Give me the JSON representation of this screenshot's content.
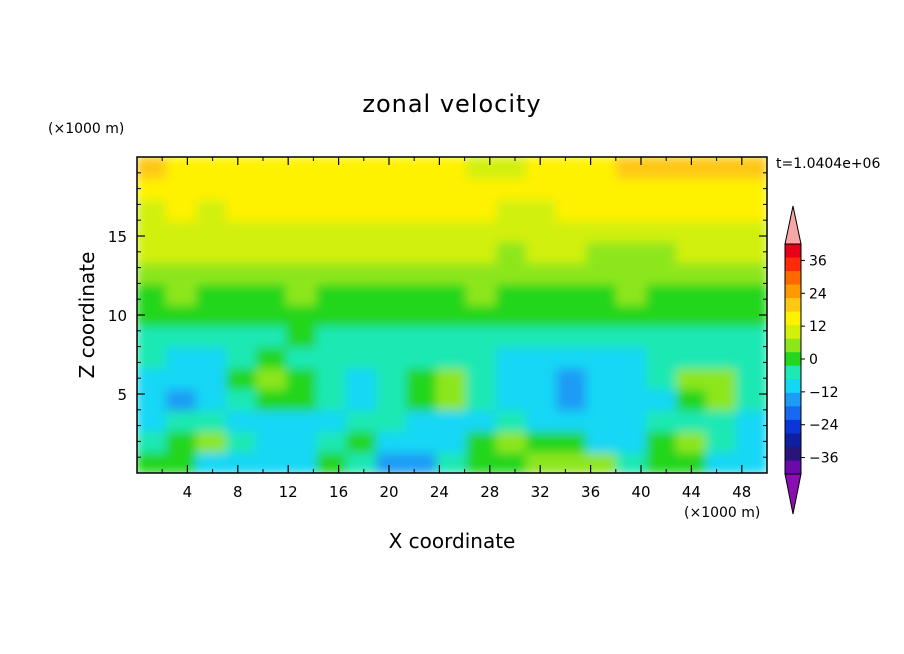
{
  "chart_data": {
    "type": "heatmap",
    "title": "zonal velocity",
    "xlabel": "X coordinate",
    "ylabel": "Z coordinate",
    "x_unit": "(×1000 m)",
    "y_unit": "(×1000 m)",
    "time_label": "t=1.0404e+06",
    "xlim": [
      0,
      50
    ],
    "ylim": [
      0,
      20
    ],
    "x_ticks": [
      "4",
      "8",
      "12",
      "16",
      "20",
      "24",
      "28",
      "32",
      "36",
      "40",
      "44",
      "48"
    ],
    "y_ticks": [
      "5",
      "10",
      "15"
    ],
    "x_tick_values": [
      4,
      8,
      12,
      16,
      20,
      24,
      28,
      32,
      36,
      40,
      44,
      48
    ],
    "y_tick_values": [
      5,
      10,
      15
    ],
    "colorbar": {
      "labels": [
        "36",
        "24",
        "12",
        "0",
        "−12",
        "−24",
        "−36"
      ],
      "label_values": [
        36,
        24,
        12,
        0,
        -12,
        -24,
        -36
      ],
      "levels": [
        -42,
        -36,
        -30,
        -24,
        -18,
        -12,
        -6,
        0,
        6,
        12,
        18,
        24,
        30,
        36,
        42
      ],
      "colors": [
        "#6a0aa8",
        "#27157a",
        "#0f1fa0",
        "#0a36d8",
        "#1669f0",
        "#1c9cf5",
        "#12d7f5",
        "#1ee8b4",
        "#23d61e",
        "#8de61a",
        "#d2f00a",
        "#fff200",
        "#ffc814",
        "#ff9a00",
        "#ff6a00",
        "#ff2a0a",
        "#e8001a"
      ],
      "extend_low_color": "#8b0eb0",
      "extend_high_color": "#f7a5a5"
    },
    "z_rows_bottom_to_top": [
      [
        2,
        3,
        -10,
        -12,
        -12,
        -8,
        0,
        -5,
        -16,
        -18,
        -4,
        2,
        4,
        8,
        8,
        6,
        -6,
        2,
        4,
        -10,
        -8
      ],
      [
        -6,
        4,
        6,
        -4,
        -12,
        -10,
        -2,
        2,
        -8,
        -12,
        -8,
        2,
        6,
        4,
        0,
        -8,
        -10,
        2,
        6,
        -4,
        -10
      ],
      [
        -8,
        -4,
        -2,
        -8,
        -10,
        -8,
        -10,
        -4,
        -2,
        -8,
        -10,
        -8,
        -4,
        -10,
        -12,
        -10,
        -12,
        -6,
        -2,
        -6,
        -8
      ],
      [
        -10,
        -14,
        -8,
        -2,
        4,
        2,
        -6,
        -10,
        -6,
        4,
        6,
        -4,
        -10,
        -12,
        -14,
        -12,
        -10,
        -8,
        4,
        6,
        -6
      ],
      [
        -8,
        -12,
        -10,
        0,
        6,
        4,
        -4,
        -8,
        -4,
        4,
        8,
        -2,
        -10,
        -12,
        -14,
        -12,
        -10,
        -6,
        6,
        8,
        -4
      ],
      [
        -6,
        -8,
        -10,
        -4,
        0,
        -2,
        -6,
        -6,
        -4,
        -2,
        -4,
        -6,
        -8,
        -8,
        -10,
        -8,
        -8,
        -6,
        -4,
        -6,
        -6
      ],
      [
        -2,
        -2,
        -4,
        -2,
        -2,
        0,
        -2,
        -4,
        -4,
        -2,
        -2,
        -4,
        -4,
        -6,
        -6,
        -4,
        -4,
        -2,
        -2,
        -2,
        -4
      ],
      [
        2,
        2,
        1,
        2,
        2,
        1,
        2,
        0,
        1,
        2,
        1,
        2,
        1,
        2,
        0,
        2,
        2,
        1,
        2,
        2,
        1
      ],
      [
        4,
        6,
        3,
        5,
        4,
        6,
        3,
        4,
        5,
        3,
        4,
        6,
        4,
        3,
        4,
        5,
        6,
        4,
        3,
        5,
        4
      ],
      [
        8,
        7,
        9,
        8,
        7,
        8,
        9,
        8,
        10,
        9,
        8,
        7,
        9,
        10,
        8,
        6,
        7,
        8,
        9,
        8,
        9
      ],
      [
        12,
        12,
        13,
        12,
        12,
        13,
        14,
        13,
        12,
        12,
        13,
        12,
        11,
        12,
        12,
        10,
        9,
        11,
        12,
        12,
        13
      ],
      [
        14,
        15,
        14,
        15,
        16,
        15,
        14,
        15,
        16,
        16,
        15,
        14,
        14,
        15,
        15,
        14,
        14,
        15,
        15,
        16,
        15
      ],
      [
        17,
        18,
        17,
        18,
        18,
        19,
        18,
        19,
        19,
        19,
        19,
        18,
        17,
        17,
        18,
        19,
        19,
        19,
        20,
        20,
        21
      ],
      [
        19,
        20,
        19,
        20,
        20,
        21,
        21,
        21,
        20,
        20,
        19,
        18,
        18,
        18,
        19,
        20,
        21,
        21,
        22,
        22,
        23
      ],
      [
        24,
        23,
        21,
        20,
        19,
        20,
        21,
        23,
        22,
        21,
        19,
        17,
        17,
        18,
        20,
        22,
        24,
        25,
        26,
        26,
        25
      ]
    ]
  }
}
